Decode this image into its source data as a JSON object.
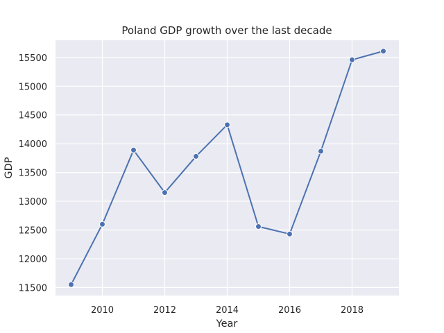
{
  "chart_data": {
    "type": "line",
    "title": "Poland GDP growth over the last decade",
    "xlabel": "Year",
    "ylabel": "GDP",
    "x": [
      2009,
      2010,
      2011,
      2012,
      2013,
      2014,
      2015,
      2016,
      2017,
      2018,
      2019
    ],
    "series": [
      {
        "values": [
          11550,
          12600,
          13890,
          13150,
          13780,
          14330,
          12560,
          12430,
          13870,
          15460,
          15610
        ]
      }
    ],
    "xlim": [
      2008.5,
      2019.5
    ],
    "ylim": [
      11360,
      15800
    ],
    "xticks": [
      2010,
      2012,
      2014,
      2016,
      2018
    ],
    "yticks": [
      11500,
      12000,
      12500,
      13000,
      13500,
      14000,
      14500,
      15000,
      15500
    ],
    "grid": true,
    "line_color": "#4c72b0",
    "background_color": "#eaeaf2",
    "grid_color": "#ffffff"
  }
}
